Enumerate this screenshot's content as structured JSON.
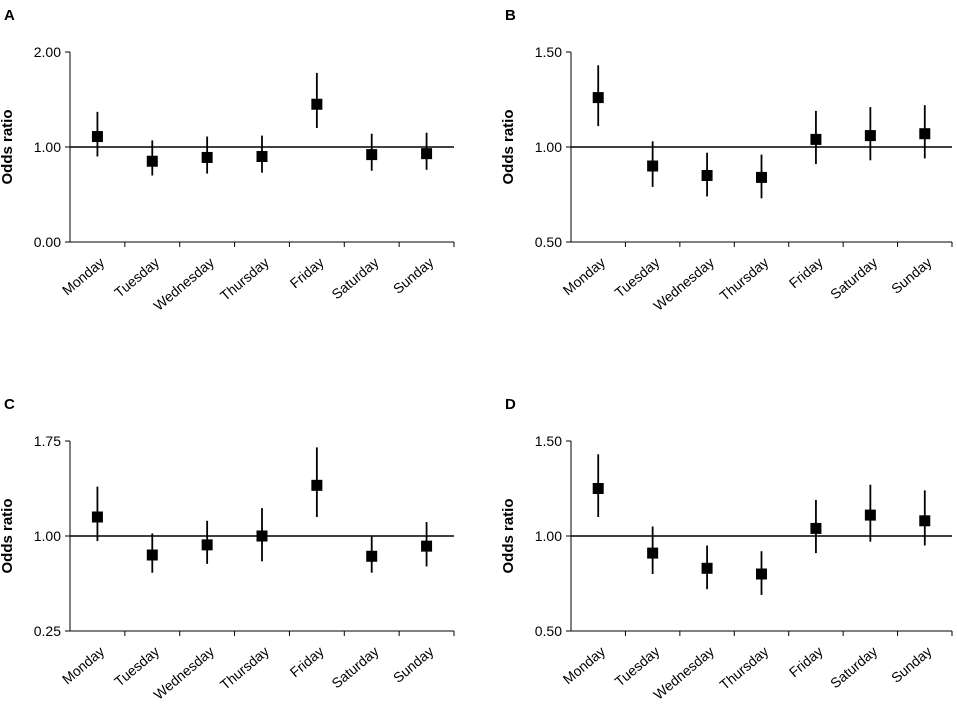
{
  "chart_data": [
    {
      "panel": "A",
      "type": "scatter",
      "subtype": "point-with-error-bars",
      "ylabel": "Odds ratio",
      "xlabel": "",
      "categories": [
        "Monday",
        "Tuesday",
        "Wednesday",
        "Thursday",
        "Friday",
        "Saturday",
        "Sunday"
      ],
      "ylim": [
        0.0,
        2.0
      ],
      "yticks": [
        0.0,
        1.0,
        2.0
      ],
      "ytick_labels": [
        "0.00",
        "1.00",
        "2.00"
      ],
      "reference_line": 1.0,
      "values": [
        1.11,
        0.85,
        0.89,
        0.9,
        1.45,
        0.92,
        0.93
      ],
      "lower": [
        0.9,
        0.7,
        0.72,
        0.73,
        1.2,
        0.75,
        0.76
      ],
      "upper": [
        1.37,
        1.07,
        1.11,
        1.12,
        1.78,
        1.14,
        1.15
      ]
    },
    {
      "panel": "B",
      "type": "scatter",
      "subtype": "point-with-error-bars",
      "ylabel": "Odds ratio",
      "xlabel": "",
      "categories": [
        "Monday",
        "Tuesday",
        "Wednesday",
        "Thursday",
        "Friday",
        "Saturday",
        "Sunday"
      ],
      "ylim": [
        0.5,
        1.5
      ],
      "yticks": [
        0.5,
        1.0,
        1.5
      ],
      "ytick_labels": [
        "0.50",
        "1.00",
        "1.50"
      ],
      "reference_line": 1.0,
      "values": [
        1.26,
        0.9,
        0.85,
        0.84,
        1.04,
        1.06,
        1.07
      ],
      "lower": [
        1.11,
        0.79,
        0.74,
        0.73,
        0.91,
        0.93,
        0.94
      ],
      "upper": [
        1.43,
        1.03,
        0.97,
        0.96,
        1.19,
        1.21,
        1.22
      ]
    },
    {
      "panel": "C",
      "type": "scatter",
      "subtype": "point-with-error-bars",
      "ylabel": "Odds ratio",
      "xlabel": "",
      "categories": [
        "Monday",
        "Tuesday",
        "Wednesday",
        "Thursday",
        "Friday",
        "Saturday",
        "Sunday"
      ],
      "ylim": [
        0.25,
        1.75
      ],
      "yticks": [
        0.25,
        1.0,
        1.75
      ],
      "ytick_labels": [
        "0.25",
        "1.00",
        "1.75"
      ],
      "reference_line": 1.0,
      "values": [
        1.15,
        0.85,
        0.93,
        1.0,
        1.4,
        0.84,
        0.92
      ],
      "lower": [
        0.96,
        0.71,
        0.78,
        0.8,
        1.15,
        0.71,
        0.76
      ],
      "upper": [
        1.39,
        1.02,
        1.12,
        1.22,
        1.7,
        1.0,
        1.11
      ]
    },
    {
      "panel": "D",
      "type": "scatter",
      "subtype": "point-with-error-bars",
      "ylabel": "Odds ratio",
      "xlabel": "",
      "categories": [
        "Monday",
        "Tuesday",
        "Wednesday",
        "Thursday",
        "Friday",
        "Saturday",
        "Sunday"
      ],
      "ylim": [
        0.5,
        1.5
      ],
      "yticks": [
        0.5,
        1.0,
        1.5
      ],
      "ytick_labels": [
        "0.50",
        "1.00",
        "1.50"
      ],
      "reference_line": 1.0,
      "values": [
        1.25,
        0.91,
        0.83,
        0.8,
        1.04,
        1.11,
        1.08
      ],
      "lower": [
        1.1,
        0.8,
        0.72,
        0.69,
        0.91,
        0.97,
        0.95
      ],
      "upper": [
        1.43,
        1.05,
        0.95,
        0.92,
        1.19,
        1.27,
        1.24
      ]
    }
  ]
}
